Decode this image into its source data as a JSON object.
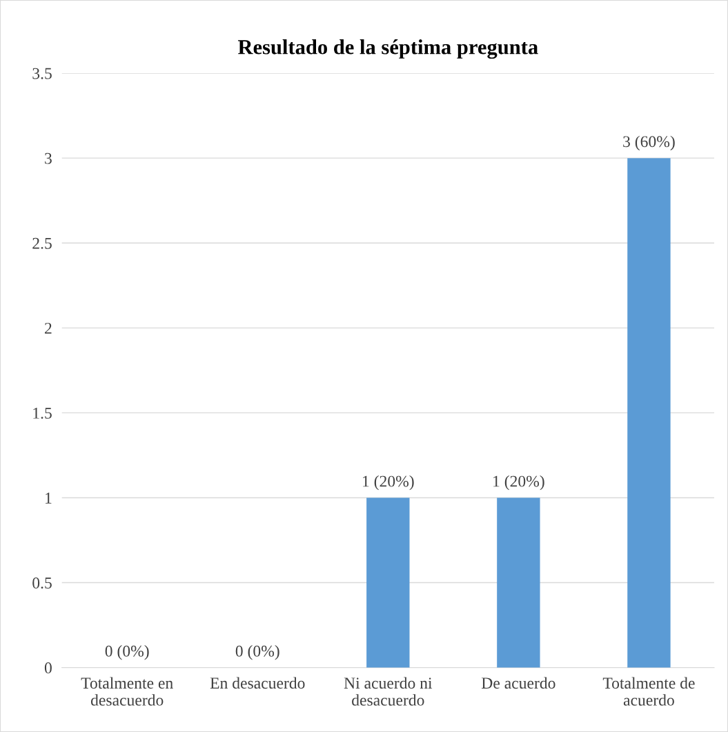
{
  "chart_data": {
    "type": "bar",
    "title": "Resultado de la séptima pregunta",
    "categories": [
      "Totalmente en\ndesacuerdo",
      "En desacuerdo",
      "Ni acuerdo ni\ndesacuerdo",
      "De acuerdo",
      "Totalmente de\nacuerdo"
    ],
    "values": [
      0,
      0,
      1,
      1,
      3
    ],
    "value_labels": [
      "0 (0%)",
      "0 (0%)",
      "1 (20%)",
      "1 (20%)",
      "3 (60%)"
    ],
    "color": "#5b9bd5",
    "ylim": [
      0,
      3.5
    ],
    "yticks": [
      0,
      0.5,
      1,
      1.5,
      2,
      2.5,
      3,
      3.5
    ],
    "grid": "y",
    "legend": false
  }
}
